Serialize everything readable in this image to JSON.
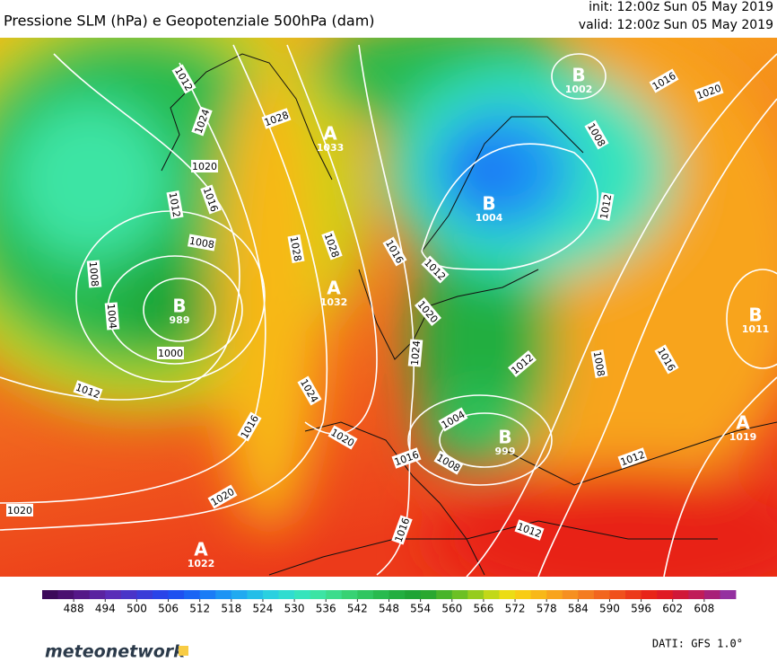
{
  "header": {
    "title": "Pressione SLM (hPa) e Geopotenziale 500hPa (dam)",
    "init": "init: 12:00z Sun 05 May 2019",
    "valid": "valid: 12:00z Sun 05 May 2019"
  },
  "isobar_labels": [
    "1024",
    "1028",
    "1020",
    "1012",
    "1016",
    "1008",
    "1008",
    "1004",
    "1000",
    "1012",
    "1016",
    "1020",
    "1024",
    "1028",
    "1028",
    "1016",
    "1012",
    "1020",
    "1024",
    "1004",
    "1008",
    "1016",
    "1012",
    "1008",
    "1016",
    "1012",
    "1012",
    "1016",
    "1020",
    "1020",
    "1016",
    "1020",
    "1008",
    "1012",
    "1012"
  ],
  "centers": [
    {
      "letter": "B",
      "value": "1002"
    },
    {
      "letter": "A",
      "value": "1033"
    },
    {
      "letter": "B",
      "value": "1004"
    },
    {
      "letter": "B",
      "value": "989"
    },
    {
      "letter": "A",
      "value": "1032"
    },
    {
      "letter": "B",
      "value": "1011"
    },
    {
      "letter": "A",
      "value": "1019"
    },
    {
      "letter": "B",
      "value": "999"
    },
    {
      "letter": "A",
      "value": "1022"
    }
  ],
  "colorbar": {
    "lim": [
      482,
      614
    ],
    "ticks": [
      488,
      494,
      500,
      506,
      512,
      518,
      524,
      530,
      536,
      542,
      548,
      554,
      560,
      566,
      572,
      578,
      584,
      590,
      596,
      602,
      608
    ],
    "colors": [
      "#3c0a5a",
      "#4a1070",
      "#551888",
      "#5a22a0",
      "#5a2cb8",
      "#4a34c8",
      "#3a3cd8",
      "#2a44e8",
      "#1e50f0",
      "#1a64f4",
      "#1a7cf6",
      "#1c94f4",
      "#20aaf0",
      "#24bee8",
      "#2ad0e0",
      "#30dcd0",
      "#36e4bc",
      "#3ce4a4",
      "#3cdc8c",
      "#38d274",
      "#30c660",
      "#28ba4e",
      "#22ae40",
      "#1ea436",
      "#2aa830",
      "#48b42a",
      "#6cc024",
      "#96cc1e",
      "#c2d818",
      "#ecdc14",
      "#f8cc14",
      "#f8b818",
      "#f8a41c",
      "#f69020",
      "#f47c20",
      "#f2661e",
      "#f0501c",
      "#ec3a1a",
      "#e82418",
      "#e01a24",
      "#d01838",
      "#c01c58",
      "#a82078",
      "#9430a0"
    ]
  },
  "footer": {
    "logo": "meteonetwork",
    "source": "DATI:  GFS  1.0°"
  }
}
